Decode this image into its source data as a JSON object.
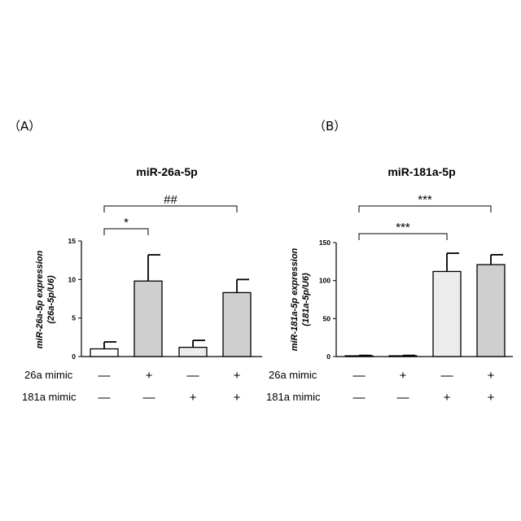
{
  "panels": {
    "a": {
      "label": "（A）",
      "title": "miR-26a-5p",
      "ylabel_line1": "miR-26a-5p expression",
      "ylabel_line2": "(26a-5p/U6)"
    },
    "b": {
      "label": "（B）",
      "title": "miR-181a-5p",
      "ylabel_line1": "miR-181a-5p expression",
      "ylabel_line2": "(181a-5p/U6)"
    }
  },
  "treatment_rows": [
    {
      "label": "26a mimic",
      "signs": [
        "—",
        "+",
        "—",
        "+"
      ]
    },
    {
      "label": "181a mimic",
      "signs": [
        "—",
        "—",
        "+",
        "+"
      ]
    }
  ],
  "colors": {
    "bar_fills": [
      "#ffffff",
      "#cfcfcf",
      "#ececec",
      "#cfcfcf"
    ],
    "stroke": "#000000"
  },
  "chart_data": [
    {
      "type": "bar",
      "title": "miR-26a-5p",
      "ylabel": "miR-26a-5p expression (26a-5p/U6)",
      "ylim": [
        0,
        15
      ],
      "yticks": [
        0,
        5,
        10,
        15
      ],
      "groups": [
        "26a mimic — / 181a mimic —",
        "26a mimic + / 181a mimic —",
        "26a mimic — / 181a mimic +",
        "26a mimic + / 181a mimic +"
      ],
      "values": [
        1.0,
        9.8,
        1.2,
        8.3
      ],
      "errors": [
        0.9,
        3.4,
        0.9,
        1.7
      ],
      "significance": [
        {
          "from": 0,
          "to": 1,
          "label": "*"
        },
        {
          "from": 0,
          "to": 3,
          "label": "##"
        }
      ]
    },
    {
      "type": "bar",
      "title": "miR-181a-5p",
      "ylabel": "miR-181a-5p expression (181a-5p/U6)",
      "ylim": [
        0,
        150
      ],
      "yticks": [
        0,
        50,
        100,
        150
      ],
      "groups": [
        "26a mimic — / 181a mimic —",
        "26a mimic + / 181a mimic —",
        "26a mimic — / 181a mimic +",
        "26a mimic + / 181a mimic +"
      ],
      "values": [
        1.0,
        1.0,
        112,
        121
      ],
      "errors": [
        0.5,
        0.5,
        24,
        13
      ],
      "significance": [
        {
          "from": 0,
          "to": 2,
          "label": "***"
        },
        {
          "from": 0,
          "to": 3,
          "label": "***"
        }
      ]
    }
  ]
}
